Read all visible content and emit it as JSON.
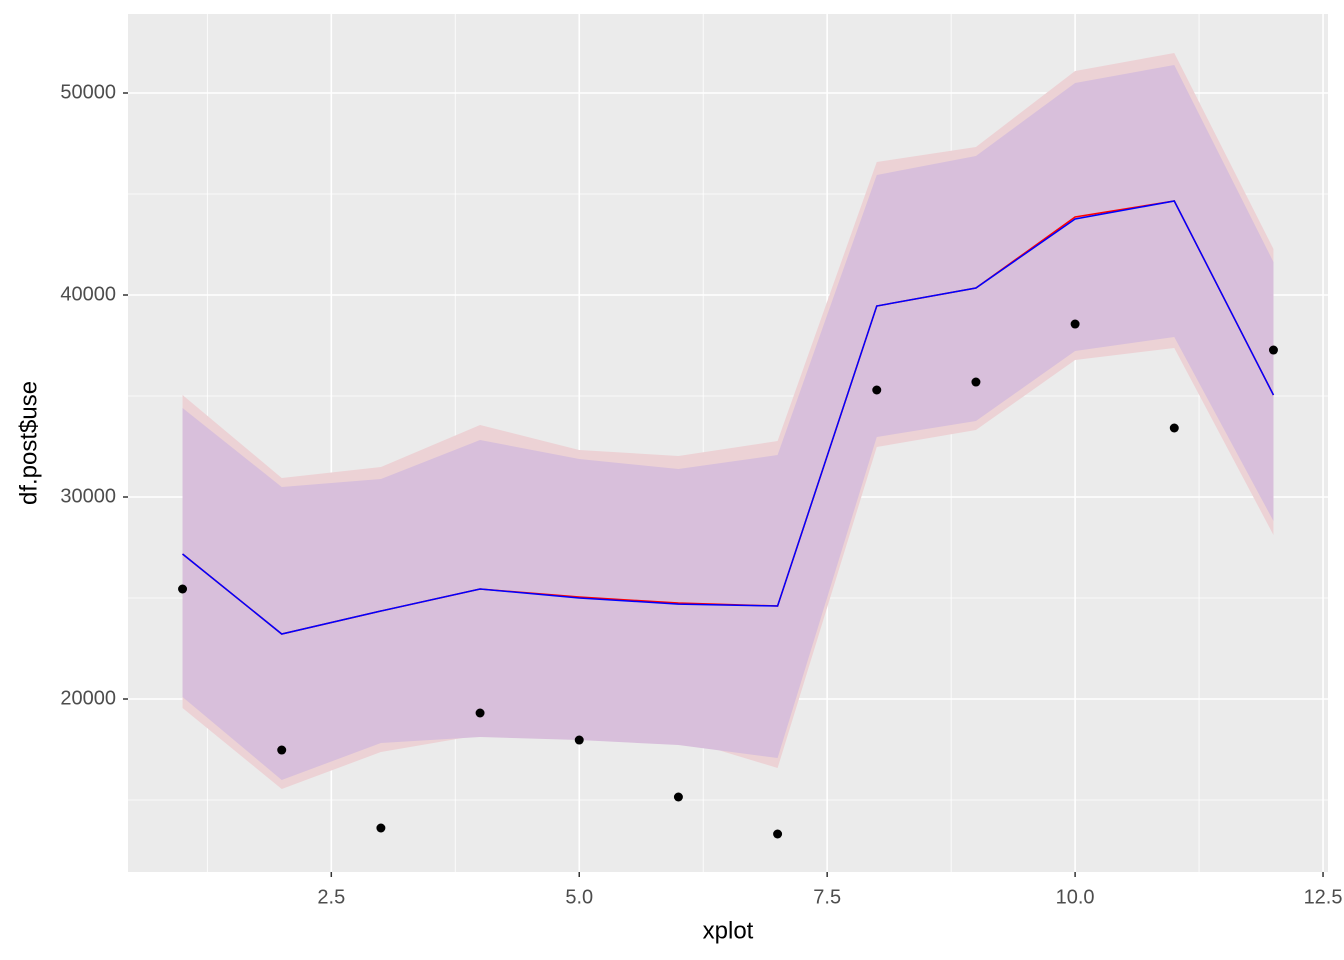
{
  "chart_data": {
    "type": "line",
    "x_label": "xplot",
    "y_label": "df.post$use",
    "x": [
      1,
      2,
      3,
      4,
      5,
      6,
      7,
      8,
      9,
      10,
      11,
      12
    ],
    "xlim": [
      0.45,
      12.55
    ],
    "xticks": [
      2.5,
      {
        "value": 5,
        "label": "5.0"
      },
      7.5,
      {
        "value": 10,
        "label": "10.0"
      },
      12.5
    ],
    "x_minor_ticks": [
      1.25,
      3.75,
      6.25,
      8.75,
      11.25
    ],
    "ylim": [
      11436,
      53911
    ],
    "yticks": [
      20000,
      30000,
      40000,
      50000
    ],
    "y_minor_ticks": [
      15000,
      25000,
      35000,
      45000
    ],
    "grid": true,
    "ribbons": [
      {
        "color": "#ecd2d5",
        "upper": [
          35050,
          30941,
          31485,
          33564,
          32327,
          32030,
          32772,
          46584,
          47327,
          51089,
          51980,
          42277
        ],
        "lower": [
          19554,
          15545,
          17376,
          18218,
          18168,
          18069,
          16584,
          32475,
          33317,
          36782,
          37376,
          28119
        ]
      },
      {
        "color": "#d8bfdb",
        "upper": [
          34406,
          30495,
          30891,
          32822,
          31881,
          31386,
          32079,
          45941,
          46881,
          50495,
          51386,
          41634
        ],
        "lower": [
          20099,
          15990,
          17822,
          18119,
          17970,
          17723,
          17079,
          32970,
          33762,
          37228,
          37921,
          28812
        ]
      }
    ],
    "series": [
      {
        "color": "red",
        "values": [
          27178,
          23218,
          24356,
          25446,
          25050,
          24752,
          24604,
          39455,
          40347,
          43861,
          44653,
          35050
        ]
      },
      {
        "color": "blue",
        "values": [
          27178,
          23218,
          24356,
          25446,
          25000,
          24700,
          24604,
          39455,
          40347,
          43762,
          44653,
          35050
        ]
      }
    ],
    "points": {
      "color": "#000000",
      "values": [
        25446,
        17475,
        13614,
        19307,
        17970,
        15149,
        13317,
        35297,
        35693,
        38564,
        33416,
        37277
      ]
    }
  }
}
